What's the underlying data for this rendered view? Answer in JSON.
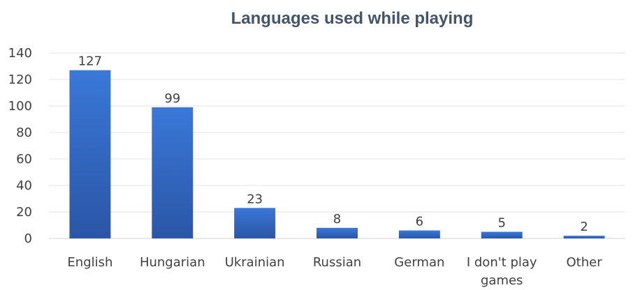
{
  "chart_data": {
    "type": "bar",
    "title": "Languages used while playing",
    "xlabel": "",
    "ylabel": "",
    "categories": [
      "English",
      "Hungarian",
      "Ukrainian",
      "Russian",
      "German",
      "I don't play games",
      "Other"
    ],
    "values": [
      127,
      99,
      23,
      8,
      6,
      5,
      2
    ],
    "ylim": [
      0,
      140
    ],
    "yticks": [
      0,
      20,
      40,
      60,
      80,
      100,
      120,
      140
    ],
    "grid": true,
    "legend": "none",
    "data_labels": true,
    "colors": {
      "bar_top": "#3a78d8",
      "bar_bottom": "#2a56a6"
    }
  }
}
